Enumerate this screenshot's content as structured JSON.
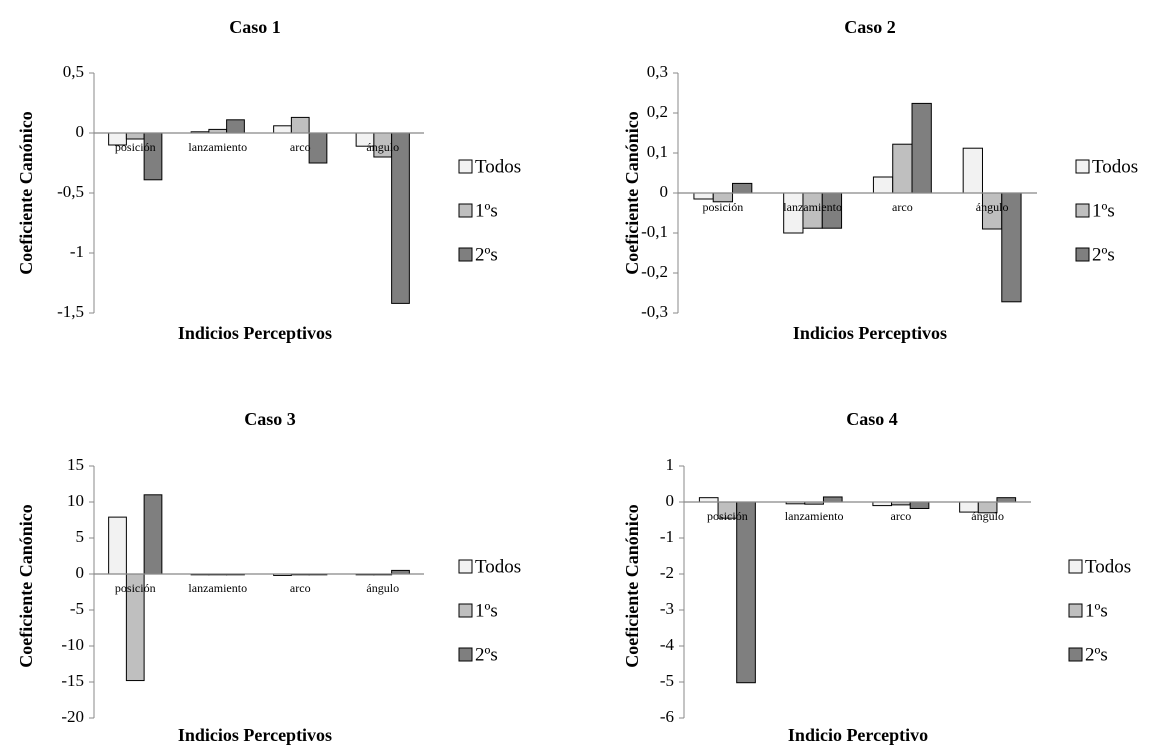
{
  "series_colors": {
    "Todos": "#f2f2f2",
    "1ºs": "#bfbfbf",
    "2ºs": "#7f7f7f"
  },
  "chart_data": [
    {
      "type": "bar",
      "title": "Caso 1",
      "xlabel": "Indicios Perceptivos",
      "ylabel": "Coeficiente Canónico",
      "categories": [
        "posición",
        "lanzamiento",
        "arco",
        "ángulo"
      ],
      "ylim": [
        -1.5,
        0.5
      ],
      "yticks": [
        "0,5",
        "0",
        "-0,5",
        "-1",
        "-1,5"
      ],
      "ytick_values": [
        0.5,
        0,
        -0.5,
        -1,
        -1.5
      ],
      "legend": "right",
      "series": [
        {
          "name": "Todos",
          "values": [
            -0.1,
            0.01,
            0.06,
            -0.11
          ]
        },
        {
          "name": "1ºs",
          "values": [
            -0.05,
            0.03,
            0.13,
            -0.2
          ]
        },
        {
          "name": "2ºs",
          "values": [
            -0.39,
            0.11,
            -0.25,
            -1.42
          ]
        }
      ]
    },
    {
      "type": "bar",
      "title": "Caso 2",
      "xlabel": "Indicios Perceptivos",
      "ylabel": "Coeficiente Canónico",
      "categories": [
        "posición",
        "lanzamiento",
        "arco",
        "ángulo"
      ],
      "ylim": [
        -0.3,
        0.3
      ],
      "yticks": [
        "0,3",
        "0,2",
        "0,1",
        "0",
        "-0,1",
        "-0,2",
        "-0,3"
      ],
      "ytick_values": [
        0.3,
        0.2,
        0.1,
        0,
        -0.1,
        -0.2,
        -0.3
      ],
      "legend": "right",
      "series": [
        {
          "name": "Todos",
          "values": [
            -0.015,
            -0.1,
            0.04,
            0.112
          ]
        },
        {
          "name": "1ºs",
          "values": [
            -0.022,
            -0.088,
            0.122,
            -0.09
          ]
        },
        {
          "name": "2ºs",
          "values": [
            0.024,
            -0.088,
            0.224,
            -0.272
          ]
        }
      ]
    },
    {
      "type": "bar",
      "title": "Caso 3",
      "xlabel": "Indicios Perceptivos",
      "ylabel": "Coeficiente Canónico",
      "categories": [
        "posición",
        "lanzamiento",
        "arco",
        "ángulo"
      ],
      "ylim": [
        -20,
        15
      ],
      "yticks": [
        "15",
        "10",
        "5",
        "0",
        "-5",
        "-10",
        "-15",
        "-20"
      ],
      "ytick_values": [
        15,
        10,
        5,
        0,
        -5,
        -10,
        -15,
        -20
      ],
      "legend": "right",
      "series": [
        {
          "name": "Todos",
          "values": [
            7.9,
            -0.1,
            -0.2,
            -0.1
          ]
        },
        {
          "name": "1ºs",
          "values": [
            -14.8,
            -0.1,
            -0.1,
            -0.1
          ]
        },
        {
          "name": "2ºs",
          "values": [
            11,
            -0.1,
            -0.1,
            0.5
          ]
        }
      ]
    },
    {
      "type": "bar",
      "title": "Caso 4",
      "xlabel": "Indicio Perceptivo",
      "ylabel": "Coeficiente Canónico",
      "categories": [
        "posición",
        "lanzamiento",
        "arco",
        "ángulo"
      ],
      "ylim": [
        -6,
        1
      ],
      "yticks": [
        "1",
        "0",
        "-1",
        "-2",
        "-3",
        "-4",
        "-5",
        "-6"
      ],
      "ytick_values": [
        1,
        0,
        -1,
        -2,
        -3,
        -4,
        -5,
        -6
      ],
      "legend": "right",
      "series": [
        {
          "name": "Todos",
          "values": [
            0.12,
            -0.05,
            -0.1,
            -0.28
          ]
        },
        {
          "name": "1ºs",
          "values": [
            -0.45,
            -0.06,
            -0.08,
            -0.3
          ]
        },
        {
          "name": "2ºs",
          "values": [
            -5.02,
            0.14,
            -0.18,
            0.12
          ]
        }
      ]
    }
  ]
}
